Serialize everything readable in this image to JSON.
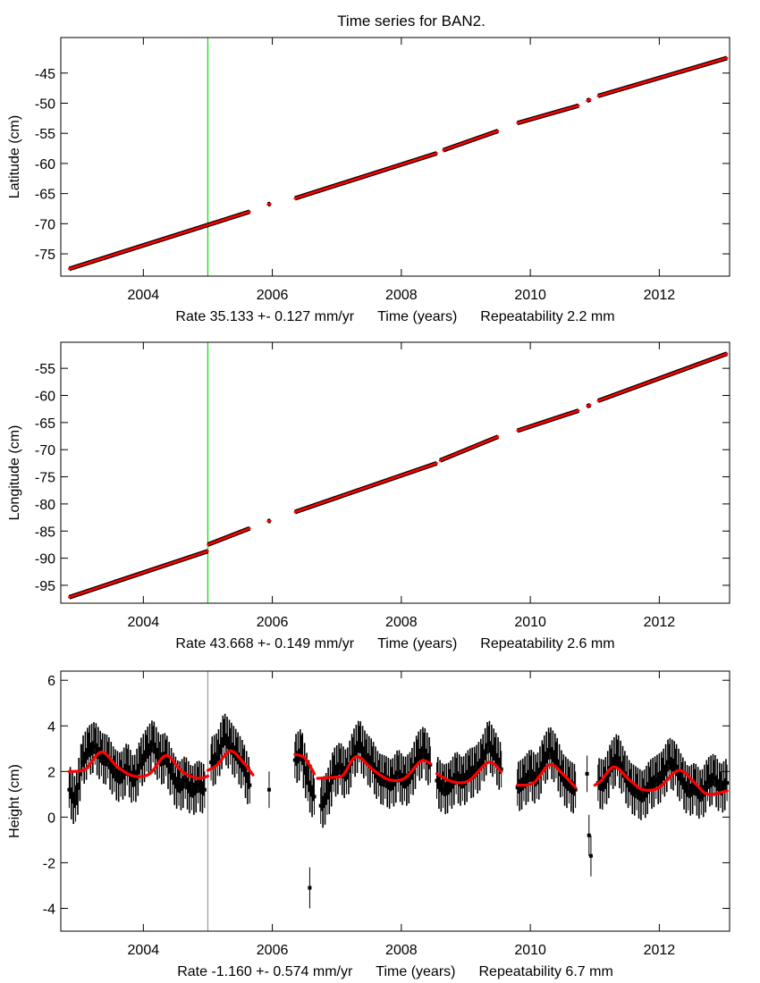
{
  "title": "Time series for BAN2.",
  "chart_data": [
    {
      "type": "line",
      "ylabel": "Latitude (cm)",
      "xlabel_parts": [
        "Rate 35.133 +- 0.127 mm/yr",
        "Time (years)",
        "Repeatability 2.2 mm"
      ],
      "xlim": [
        2002.72,
        2013.09
      ],
      "ylim": [
        -78.7,
        -39.1
      ],
      "xticks": [
        2004,
        2006,
        2008,
        2010,
        2012
      ],
      "yticks": [
        -75,
        -70,
        -65,
        -60,
        -55,
        -50,
        -45
      ],
      "event_line": {
        "x": 2005.0,
        "color": "#00e000"
      },
      "obs_color": "#000000",
      "fit_color": "#ff0000",
      "segments": [
        [
          [
            2002.85,
            -77.5
          ],
          [
            2005.65,
            -68.0
          ]
        ],
        [
          [
            2005.93,
            -66.8
          ],
          [
            2005.97,
            -66.7
          ]
        ],
        [
          [
            2006.35,
            -65.8
          ],
          [
            2008.55,
            -58.3
          ]
        ],
        [
          [
            2008.65,
            -57.8
          ],
          [
            2009.5,
            -54.6
          ]
        ],
        [
          [
            2009.8,
            -53.3
          ],
          [
            2010.75,
            -50.4
          ]
        ],
        [
          [
            2010.88,
            -49.6
          ],
          [
            2010.93,
            -49.4
          ]
        ],
        [
          [
            2011.05,
            -48.8
          ],
          [
            2013.05,
            -42.5
          ]
        ]
      ]
    },
    {
      "type": "line",
      "ylabel": "Longitude (cm)",
      "xlabel_parts": [
        "Rate 43.668 +- 0.149 mm/yr",
        "Time (years)",
        "Repeatability 2.6 mm"
      ],
      "xlim": [
        2002.72,
        2013.09
      ],
      "ylim": [
        -98.3,
        -50.2
      ],
      "xticks": [
        2004,
        2006,
        2008,
        2010,
        2012
      ],
      "yticks": [
        -95,
        -90,
        -85,
        -80,
        -75,
        -70,
        -65,
        -60,
        -55
      ],
      "event_line": {
        "x": 2005.0,
        "color": "#00e000"
      },
      "obs_color": "#000000",
      "fit_color": "#ff0000",
      "segments": [
        [
          [
            2002.85,
            -97.2
          ],
          [
            2005.0,
            -88.7
          ]
        ],
        [
          [
            2005.0,
            -87.5
          ],
          [
            2005.65,
            -84.5
          ]
        ],
        [
          [
            2005.93,
            -83.2
          ],
          [
            2005.97,
            -83.1
          ]
        ],
        [
          [
            2006.35,
            -81.5
          ],
          [
            2008.55,
            -72.5
          ]
        ],
        [
          [
            2008.6,
            -72.0
          ],
          [
            2009.5,
            -67.6
          ]
        ],
        [
          [
            2009.8,
            -66.5
          ],
          [
            2010.75,
            -62.8
          ]
        ],
        [
          [
            2010.88,
            -62.0
          ],
          [
            2010.93,
            -61.8
          ]
        ],
        [
          [
            2011.05,
            -61.0
          ],
          [
            2013.05,
            -52.3
          ]
        ]
      ]
    },
    {
      "type": "scatter",
      "ylabel": "Height (cm)",
      "xlabel_parts": [
        "Rate -1.160 +- 0.574 mm/yr",
        "Time (years)",
        "Repeatability 6.7 mm"
      ],
      "xlim": [
        2002.72,
        2013.09
      ],
      "ylim": [
        -5,
        6.4
      ],
      "xticks": [
        2004,
        2006,
        2008,
        2010,
        2012
      ],
      "yticks": [
        -4,
        -2,
        0,
        2,
        4,
        6
      ],
      "event_line": {
        "x": 2005.0,
        "color": "#9a9a9a"
      },
      "obs_color": "#000000",
      "fit_color": "#ff0000",
      "observations": [
        {
          "t0": 2002.85,
          "dt": 0.1,
          "y": [
            1.2,
            0.6,
            2.4,
            2.9,
            3.1,
            2.6,
            2.5,
            1.9,
            1.7,
            2.2,
            1.5,
            2.3,
            2.8,
            3.2,
            2.5,
            2.6,
            1.8,
            1.3,
            1.6,
            1.1,
            1.4,
            1.2
          ]
        },
        {
          "t0": 2005.05,
          "dt": 0.1,
          "y": [
            2.4,
            2.6,
            3.5,
            3.1,
            2.7,
            2.2,
            1.4
          ]
        },
        {
          "t0": 2005.95,
          "dt": 0.1,
          "y": [
            1.2
          ]
        },
        {
          "t0": 2006.35,
          "dt": 0.1,
          "y": [
            2.5,
            2.8,
            1.5,
            0.9
          ]
        },
        {
          "t0": 2006.58,
          "dt": 0.1,
          "y": [
            -3.1
          ]
        },
        {
          "t0": 2006.75,
          "dt": 0.1,
          "y": [
            0.5,
            0.9,
            1.9,
            2.2,
            1.8,
            2.7,
            3.2,
            2.6,
            2.3,
            1.7,
            1.6,
            1.4,
            1.9,
            1.5,
            1.8,
            2.6,
            2.9,
            2.3
          ]
        },
        {
          "t0": 2008.55,
          "dt": 0.1,
          "y": [
            1.6,
            1.2,
            1.3,
            1.8,
            1.5,
            1.9,
            2.0,
            2.4,
            3.2,
            2.7,
            2.1
          ]
        },
        {
          "t0": 2009.8,
          "dt": 0.1,
          "y": [
            1.3,
            1.5,
            1.9,
            1.6,
            2.4,
            2.9,
            2.5,
            1.7,
            1.4,
            1.2
          ]
        },
        {
          "t0": 2010.88,
          "dt": 0.03,
          "y": [
            1.9,
            -0.8,
            -1.7
          ]
        },
        {
          "t0": 2011.05,
          "dt": 0.1,
          "y": [
            1.5,
            1.4,
            2.2,
            2.6,
            1.9,
            1.3,
            1.1,
            0.9,
            1.4,
            1.6,
            1.8,
            2.4,
            2.2,
            1.6,
            1.1,
            1.3,
            0.9,
            1.5,
            1.7,
            1.2,
            1.5
          ]
        }
      ],
      "fit_segments": [
        [
          [
            2002.85,
            2.0
          ],
          [
            2003.1,
            2.1
          ],
          [
            2003.35,
            2.85
          ],
          [
            2003.6,
            2.2
          ],
          [
            2003.85,
            1.8
          ],
          [
            2004.1,
            1.9
          ],
          [
            2004.35,
            2.7
          ],
          [
            2004.6,
            2.0
          ],
          [
            2004.85,
            1.7
          ],
          [
            2005.0,
            1.8
          ]
        ],
        [
          [
            2005.0,
            2.05
          ],
          [
            2005.15,
            2.3
          ],
          [
            2005.35,
            2.9
          ],
          [
            2005.55,
            2.4
          ],
          [
            2005.7,
            1.85
          ]
        ],
        [
          [
            2006.35,
            2.75
          ],
          [
            2006.5,
            2.6
          ],
          [
            2006.65,
            1.9
          ]
        ],
        [
          [
            2006.7,
            1.7
          ],
          [
            2006.95,
            1.75
          ],
          [
            2007.1,
            1.85
          ],
          [
            2007.3,
            2.65
          ],
          [
            2007.55,
            2.1
          ],
          [
            2007.8,
            1.65
          ],
          [
            2008.05,
            1.7
          ],
          [
            2008.3,
            2.45
          ],
          [
            2008.45,
            2.35
          ]
        ],
        [
          [
            2008.55,
            1.9
          ],
          [
            2008.8,
            1.55
          ],
          [
            2009.05,
            1.6
          ],
          [
            2009.35,
            2.4
          ],
          [
            2009.55,
            2.0
          ]
        ],
        [
          [
            2009.8,
            1.4
          ],
          [
            2010.05,
            1.5
          ],
          [
            2010.3,
            2.3
          ],
          [
            2010.5,
            1.9
          ],
          [
            2010.7,
            1.3
          ]
        ],
        [
          [
            2011.0,
            1.4
          ],
          [
            2011.1,
            1.6
          ],
          [
            2011.3,
            2.2
          ],
          [
            2011.55,
            1.6
          ],
          [
            2011.75,
            1.2
          ],
          [
            2012.0,
            1.3
          ],
          [
            2012.3,
            2.05
          ],
          [
            2012.55,
            1.5
          ],
          [
            2012.75,
            1.0
          ],
          [
            2013.05,
            1.15
          ]
        ]
      ]
    }
  ]
}
